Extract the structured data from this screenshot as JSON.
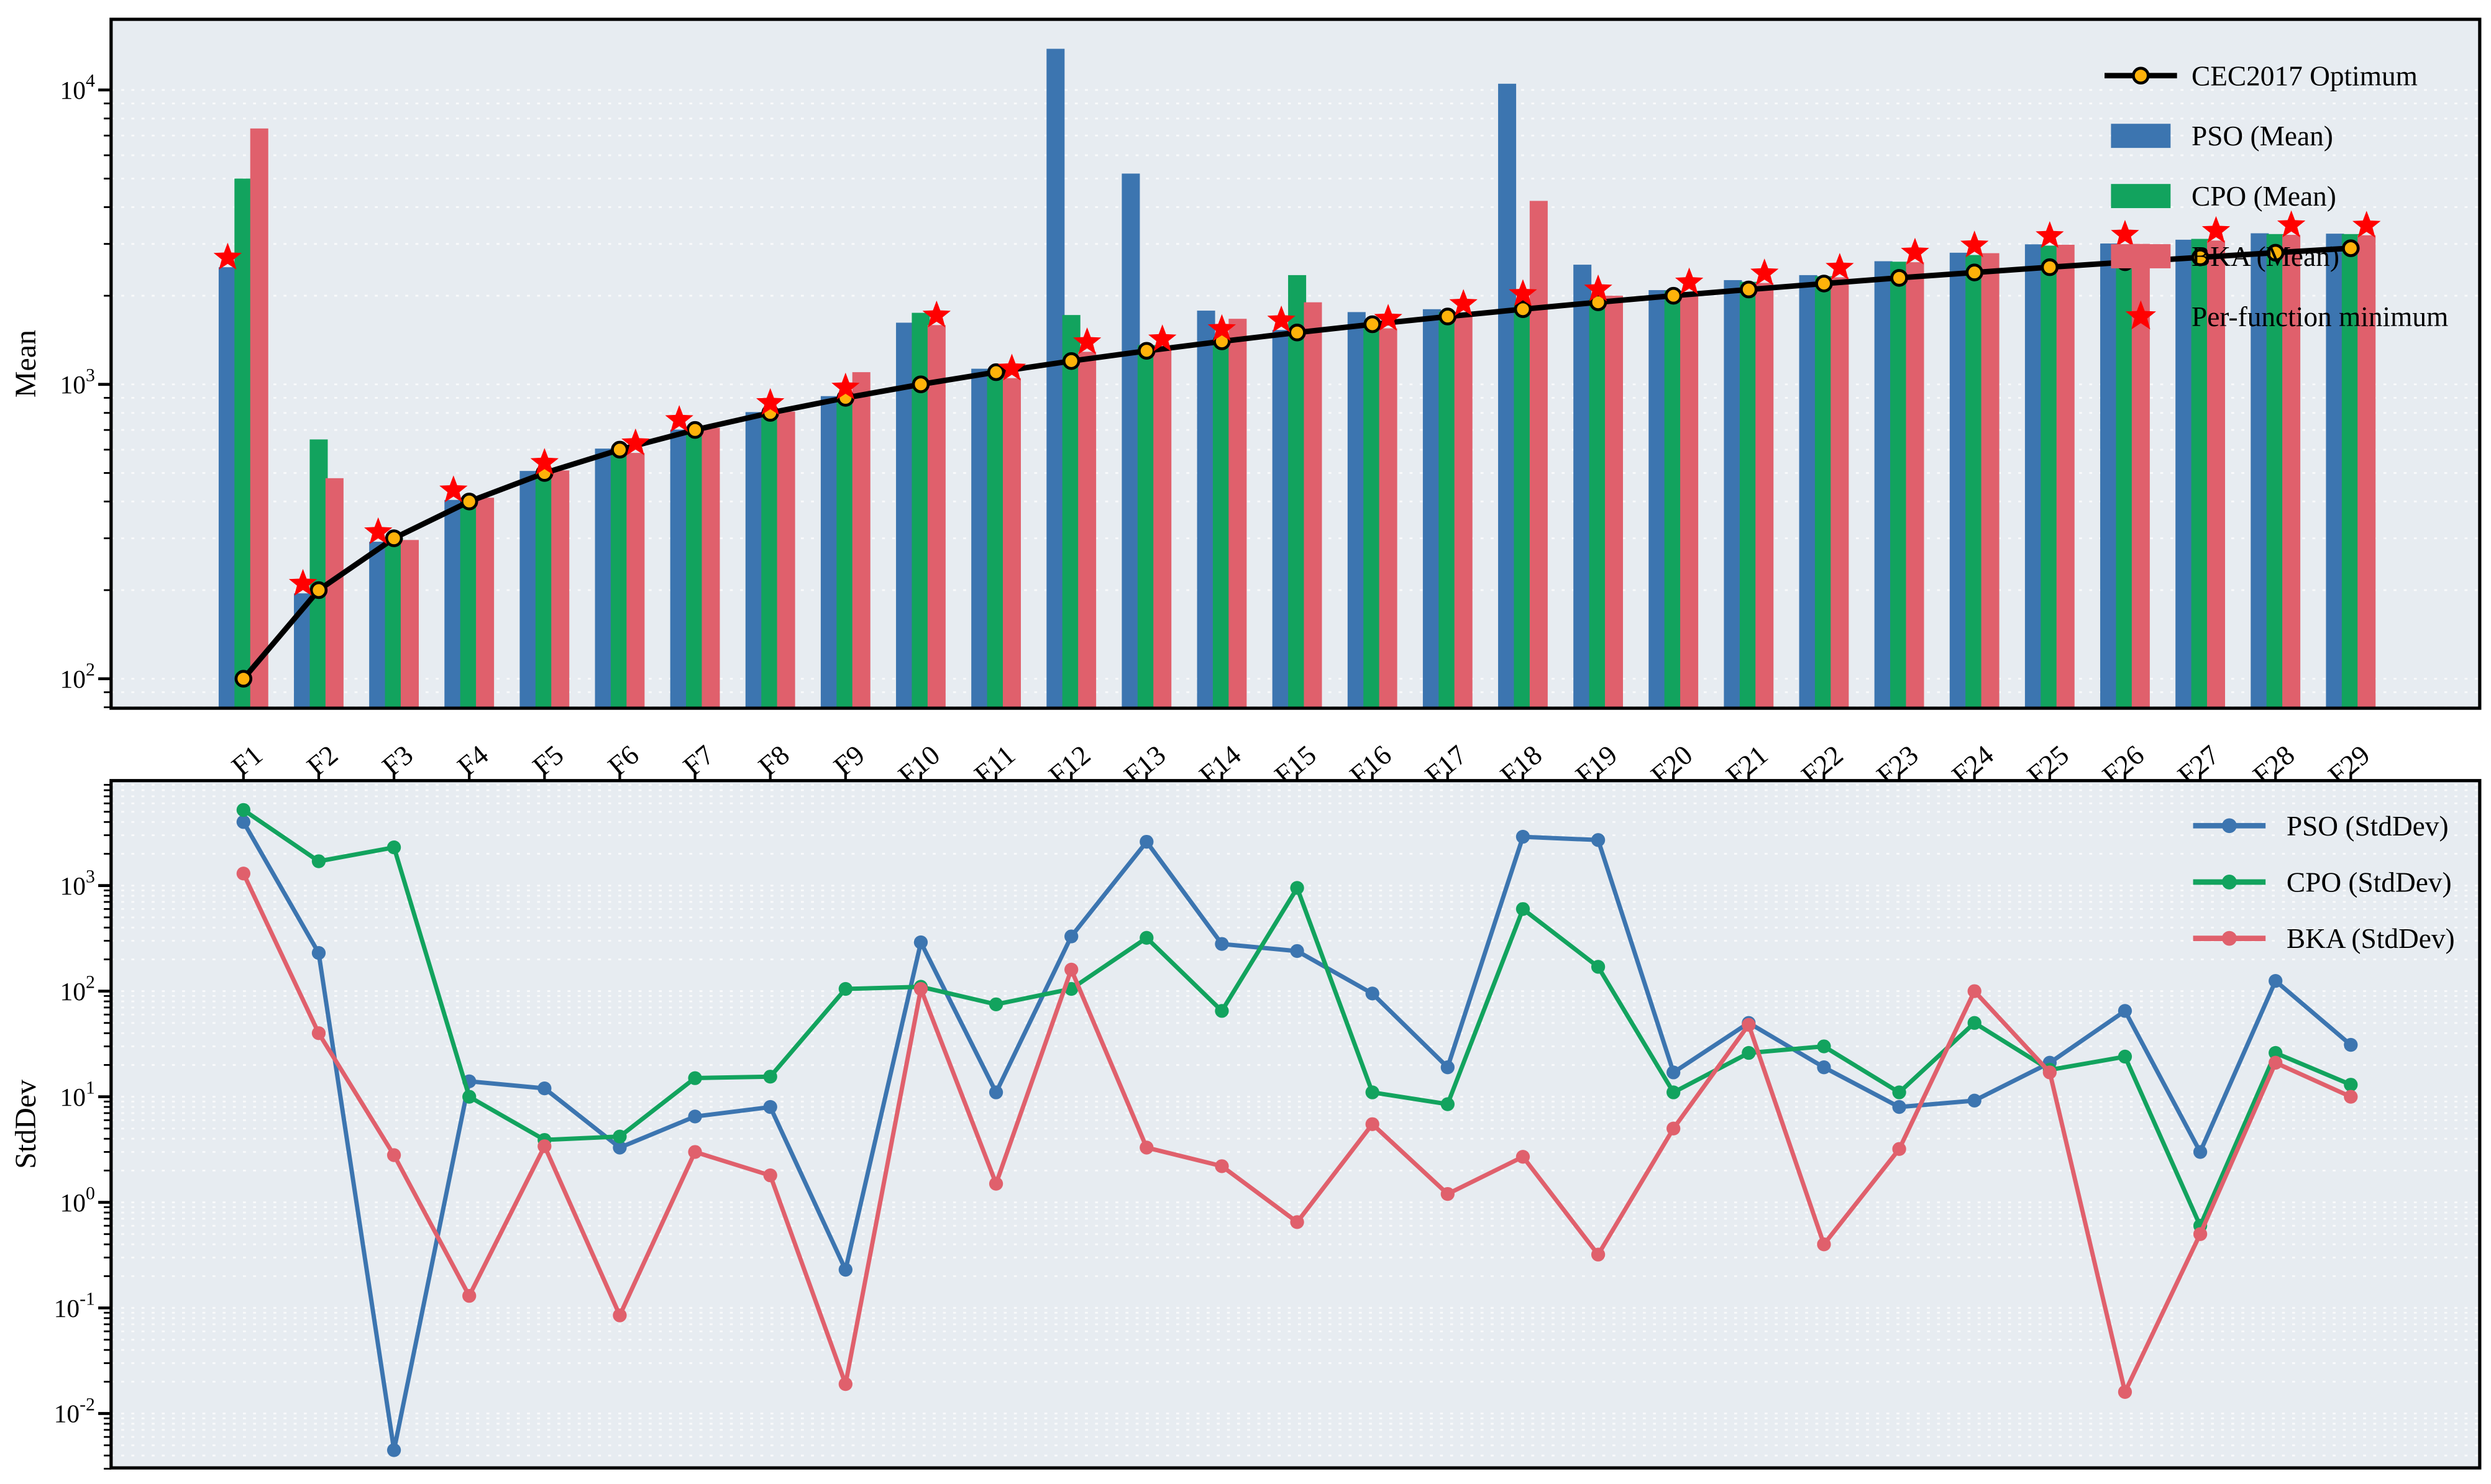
{
  "figure": {
    "background": "#ffffff",
    "panel_background": "#e7ecf1",
    "grid_color": "#ffffff",
    "spine_color": "#000000"
  },
  "chart_data": [
    {
      "type": "bar",
      "panel": "mean",
      "title": "",
      "xlabel": "",
      "ylabel": "Mean",
      "yscale": "log",
      "ylim": [
        79,
        17400
      ],
      "ytick_exponents": [
        4,
        3,
        2
      ],
      "grid": "minor-dashed",
      "legend_position": "upper right",
      "categories": [
        "F1",
        "F2",
        "F3",
        "F4",
        "F5",
        "F6",
        "F7",
        "F8",
        "F9",
        "F10",
        "F11",
        "F12",
        "F13",
        "F14",
        "F15",
        "F16",
        "F17",
        "F18",
        "F19",
        "F20",
        "F21",
        "F22",
        "F23",
        "F24",
        "F25",
        "F26",
        "F27",
        "F28",
        "F29"
      ],
      "optimum": {
        "name": "CEC2017 Optimum",
        "line_color": "#000000",
        "marker_color": "#ffb20a",
        "values": [
          100,
          200,
          300,
          400,
          500,
          600,
          700,
          800,
          900,
          1000,
          1100,
          1200,
          1300,
          1400,
          1500,
          1600,
          1700,
          1800,
          1900,
          2000,
          2100,
          2200,
          2300,
          2400,
          2500,
          2600,
          2700,
          2800,
          2900
        ]
      },
      "series": [
        {
          "name": "PSO (Mean)",
          "color": "#3c75b0",
          "values": [
            2500,
            195,
            292,
            405,
            508,
            605,
            702,
            805,
            912,
            1620,
            1130,
            13800,
            5200,
            1780,
            1530,
            1760,
            1800,
            10500,
            2550,
            2090,
            2260,
            2350,
            2620,
            2800,
            2990,
            3010,
            3100,
            3260,
            3250
          ]
        },
        {
          "name": "CPO (Mean)",
          "color": "#12a35e",
          "values": [
            5000,
            650,
            300,
            408,
            502,
            603,
            708,
            802,
            905,
            1750,
            1120,
            1720,
            1360,
            1430,
            2350,
            1570,
            1760,
            1880,
            1950,
            2080,
            2230,
            2330,
            2610,
            2750,
            2960,
            2990,
            3120,
            3240,
            3240
          ]
        },
        {
          "name": "BKA (Mean)",
          "color": "#e0606c",
          "values": [
            7400,
            480,
            296,
            412,
            510,
            585,
            712,
            808,
            1100,
            1590,
            1050,
            1290,
            1320,
            1670,
            1900,
            1550,
            1740,
            4200,
            2000,
            2060,
            2210,
            2310,
            2600,
            2790,
            2980,
            3000,
            3080,
            3220,
            3210
          ]
        }
      ],
      "minimum_marker": {
        "name": "Per-function minimum",
        "color": "#ff0000",
        "shape": "star"
      },
      "legend": [
        {
          "label": "CEC2017 Optimum",
          "handle": "line-marker",
          "color": "#000000",
          "marker_color": "#ffb20a"
        },
        {
          "label": "PSO (Mean)",
          "handle": "patch",
          "color": "#3c75b0"
        },
        {
          "label": "CPO (Mean)",
          "handle": "patch",
          "color": "#12a35e"
        },
        {
          "label": "BKA (Mean)",
          "handle": "patch",
          "color": "#e0606c"
        },
        {
          "label": "Per-function minimum",
          "handle": "star",
          "color": "#ff0000"
        }
      ]
    },
    {
      "type": "line",
      "panel": "stddev",
      "title": "",
      "xlabel": "",
      "ylabel": "StdDev",
      "yscale": "log",
      "ylim": [
        0.003,
        9800
      ],
      "ytick_exponents": [
        3,
        2,
        1,
        0,
        -1,
        -2
      ],
      "grid": "minor-dashed",
      "legend_position": "upper right",
      "x_tick_labels_visible": false,
      "categories": [
        "F1",
        "F2",
        "F3",
        "F4",
        "F5",
        "F6",
        "F7",
        "F8",
        "F9",
        "F10",
        "F11",
        "F12",
        "F13",
        "F14",
        "F15",
        "F16",
        "F17",
        "F18",
        "F19",
        "F20",
        "F21",
        "F22",
        "F23",
        "F24",
        "F25",
        "F26",
        "F27",
        "F28",
        "F29"
      ],
      "series": [
        {
          "name": "PSO (StdDev)",
          "color": "#3c75b0",
          "values": [
            4000,
            230,
            0.0045,
            14,
            12,
            3.3,
            6.5,
            8,
            0.23,
            290,
            11,
            330,
            2600,
            280,
            240,
            95,
            19,
            2900,
            2700,
            17,
            50,
            19,
            8,
            9.2,
            21,
            65,
            3,
            125,
            31
          ]
        },
        {
          "name": "CPO (StdDev)",
          "color": "#12a35e",
          "values": [
            5200,
            1700,
            2300,
            10,
            3.9,
            4.2,
            15,
            15.5,
            105,
            110,
            75,
            105,
            320,
            65,
            950,
            11,
            8.5,
            600,
            170,
            11,
            26,
            30,
            11,
            50,
            18,
            24,
            0.6,
            26,
            13
          ]
        },
        {
          "name": "BKA (StdDev)",
          "color": "#e0606c",
          "values": [
            1300,
            40,
            2.8,
            0.13,
            3.4,
            0.085,
            3.0,
            1.8,
            0.019,
            105,
            1.5,
            160,
            3.3,
            2.2,
            0.65,
            5.5,
            1.2,
            2.7,
            0.32,
            5,
            48,
            0.4,
            3.2,
            100,
            17,
            0.016,
            0.5,
            21,
            10
          ]
        }
      ],
      "legend": [
        {
          "label": "PSO (StdDev)",
          "handle": "line-marker",
          "color": "#3c75b0"
        },
        {
          "label": "CPO (StdDev)",
          "handle": "line-marker",
          "color": "#12a35e"
        },
        {
          "label": "BKA (StdDev)",
          "handle": "line-marker",
          "color": "#e0606c"
        }
      ]
    }
  ]
}
